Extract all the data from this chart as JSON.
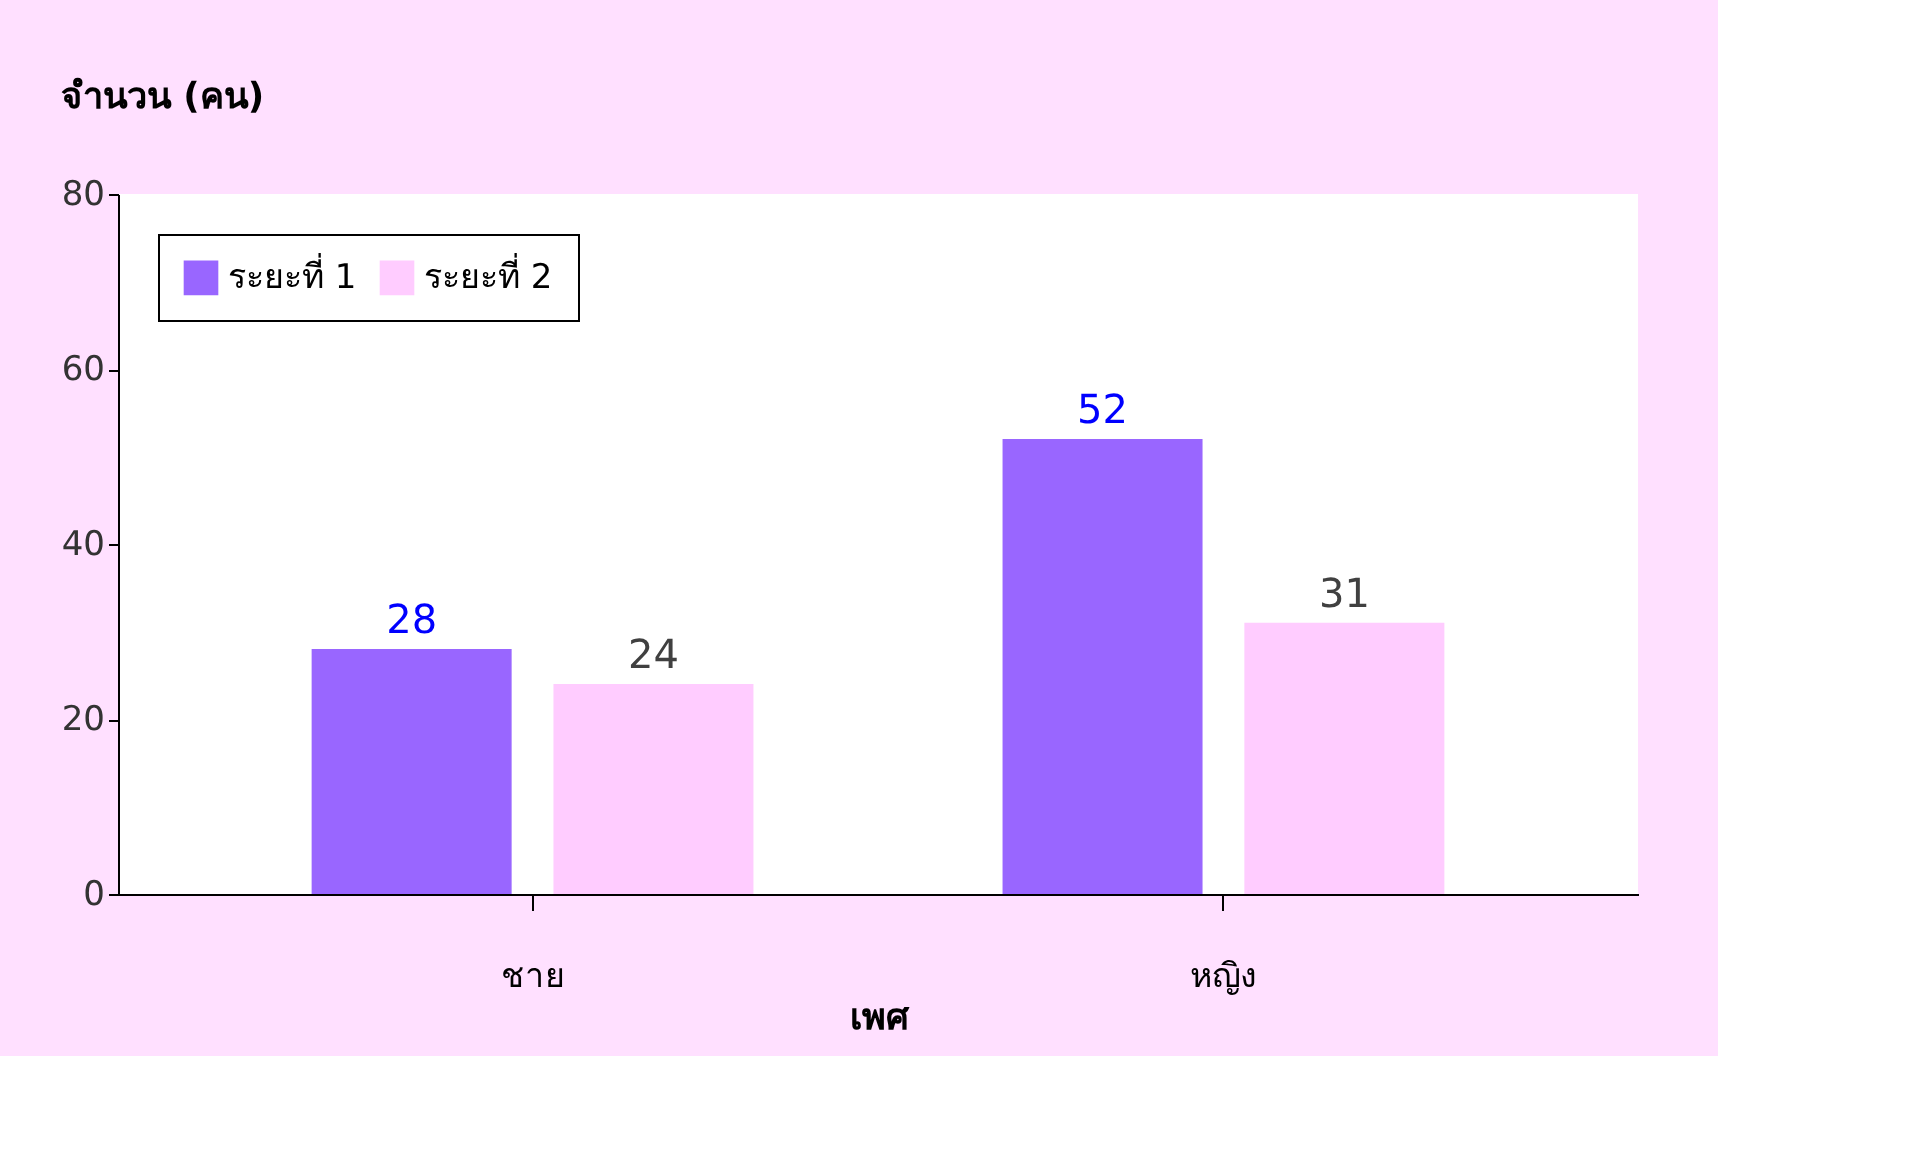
{
  "chart_data": {
    "type": "bar",
    "xlabel": "เพศ",
    "ylabel": "จำนวน (คน)",
    "categories": [
      "ชาย",
      "หญิง"
    ],
    "series": [
      {
        "name": "ระยะที่ 1",
        "color": "#9966ff",
        "values": [
          28,
          52
        ]
      },
      {
        "name": "ระยะที่ 2",
        "color": "#ffccff",
        "values": [
          24,
          31
        ]
      }
    ],
    "ylim": [
      0,
      80
    ],
    "yticks": [
      0,
      20,
      40,
      60,
      80
    ],
    "data_labels": true,
    "legend": "top left",
    "grid": false
  }
}
